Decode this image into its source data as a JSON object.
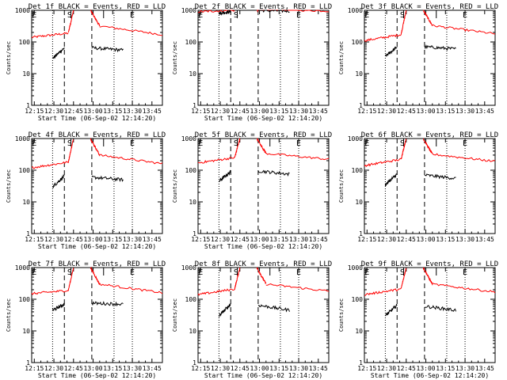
{
  "chart_data": [
    {
      "type": "line",
      "title": "Det 1f BLACK = Events, RED = LLD",
      "xlabel": "Start Time (06-Sep-02 12:14:20)",
      "ylabel": "Counts/sec",
      "ylim": [
        1,
        1000
      ],
      "yscale": "log",
      "xlim": [
        735,
        835
      ],
      "x_ticks": [
        "12:15",
        "12:30",
        "12:45",
        "13:00",
        "13:15",
        "13:30",
        "13:45"
      ],
      "y_ticks": [
        "1",
        "10",
        "100",
        "1000"
      ],
      "markers": [
        {
          "label": "E",
          "x": 737
        },
        {
          "label": "S",
          "x": 764
        },
        {
          "label": "E",
          "x": 812
        }
      ],
      "solid_lines": [
        765,
        790
      ],
      "dashed_lines": [
        760,
        781
      ],
      "dotted_lines": [
        751,
        798,
        812
      ],
      "series": [
        {
          "name": "RED",
          "color": "#ff0000",
          "segments": [
            {
              "x0": 735,
              "x1": 763,
              "y0": 140,
              "y1": 190
            },
            {
              "x0": 763,
              "x1": 767,
              "y0": 190,
              "y1": 1000
            },
            {
              "x0": 780,
              "x1": 787,
              "y0": 1000,
              "y1": 320
            },
            {
              "x0": 787,
              "x1": 835,
              "y0": 320,
              "y1": 170
            }
          ]
        },
        {
          "name": "BLACK",
          "color": "#000000",
          "segments": [
            {
              "x0": 751,
              "x1": 760,
              "y0": 30,
              "y1": 65
            },
            {
              "x0": 781,
              "x1": 805,
              "y0": 65,
              "y1": 55
            }
          ]
        }
      ]
    },
    {
      "type": "line",
      "title": "Det 2f BLACK = Events, RED = LLD",
      "xlabel": "Start Time (06-Sep-02 12:14:20)",
      "ylabel": "Counts/sec",
      "ylim": [
        1,
        1000
      ],
      "yscale": "log",
      "xlim": [
        735,
        835
      ],
      "x_ticks": [
        "12:15",
        "12:30",
        "12:45",
        "13:00",
        "13:15",
        "13:30",
        "13:45"
      ],
      "y_ticks": [
        "1",
        "10",
        "100",
        "1000"
      ],
      "markers": [
        {
          "label": "E",
          "x": 737
        },
        {
          "label": "S",
          "x": 764
        },
        {
          "label": "E",
          "x": 812
        }
      ],
      "solid_lines": [
        765,
        790
      ],
      "dashed_lines": [
        760,
        781
      ],
      "dotted_lines": [
        751,
        798,
        812
      ],
      "series": [
        {
          "name": "RED",
          "color": "#ff0000",
          "segments": [
            {
              "x0": 735,
              "x1": 763,
              "y0": 900,
              "y1": 1000
            },
            {
              "x0": 780,
              "x1": 787,
              "y0": 1000,
              "y1": 1100
            },
            {
              "x0": 787,
              "x1": 835,
              "y0": 1100,
              "y1": 950
            }
          ]
        },
        {
          "name": "BLACK",
          "color": "#000000",
          "segments": [
            {
              "x0": 751,
              "x1": 760,
              "y0": 800,
              "y1": 900
            },
            {
              "x0": 781,
              "x1": 805,
              "y0": 1000,
              "y1": 950
            }
          ]
        }
      ]
    },
    {
      "type": "line",
      "title": "Det 3f BLACK = Events, RED = LLD",
      "xlabel": "",
      "ylabel": "Counts/sec",
      "ylim": [
        1,
        1000
      ],
      "yscale": "log",
      "xlim": [
        735,
        835
      ],
      "x_ticks": [
        "12:15",
        "12:30",
        "12:45",
        "13:00",
        "13:15",
        "13:30",
        "13:45"
      ],
      "y_ticks": [
        "1",
        "10",
        "100",
        "1000"
      ],
      "markers": [
        {
          "label": "E",
          "x": 737
        },
        {
          "label": "S",
          "x": 764
        },
        {
          "label": "E",
          "x": 812
        }
      ],
      "solid_lines": [
        765,
        790
      ],
      "dashed_lines": [
        760,
        781
      ],
      "dotted_lines": [
        751,
        798,
        812
      ],
      "series": [
        {
          "name": "RED",
          "color": "#ff0000",
          "segments": [
            {
              "x0": 735,
              "x1": 763,
              "y0": 110,
              "y1": 170
            },
            {
              "x0": 763,
              "x1": 767,
              "y0": 170,
              "y1": 1000
            },
            {
              "x0": 780,
              "x1": 787,
              "y0": 1000,
              "y1": 330
            },
            {
              "x0": 787,
              "x1": 835,
              "y0": 330,
              "y1": 180
            }
          ]
        },
        {
          "name": "BLACK",
          "color": "#000000",
          "segments": [
            {
              "x0": 751,
              "x1": 760,
              "y0": 35,
              "y1": 70
            },
            {
              "x0": 781,
              "x1": 805,
              "y0": 70,
              "y1": 60
            }
          ]
        }
      ]
    },
    {
      "type": "line",
      "title": "Det 4f BLACK = Events, RED = LLD",
      "xlabel": "Start Time (06-Sep-02 12:14:20)",
      "ylabel": "Counts/sec",
      "ylim": [
        1,
        1000
      ],
      "yscale": "log",
      "xlim": [
        735,
        835
      ],
      "x_ticks": [
        "12:15",
        "12:30",
        "12:45",
        "13:00",
        "13:15",
        "13:30",
        "13:45"
      ],
      "y_ticks": [
        "1",
        "10",
        "100",
        "1000"
      ],
      "markers": [
        {
          "label": "E",
          "x": 737
        },
        {
          "label": "S",
          "x": 764
        },
        {
          "label": "E",
          "x": 812
        }
      ],
      "solid_lines": [
        765,
        790
      ],
      "dashed_lines": [
        760,
        781
      ],
      "dotted_lines": [
        751,
        798,
        812
      ],
      "series": [
        {
          "name": "RED",
          "color": "#ff0000",
          "segments": [
            {
              "x0": 735,
              "x1": 763,
              "y0": 120,
              "y1": 180
            },
            {
              "x0": 763,
              "x1": 767,
              "y0": 180,
              "y1": 1000
            },
            {
              "x0": 780,
              "x1": 787,
              "y0": 1000,
              "y1": 300
            },
            {
              "x0": 787,
              "x1": 835,
              "y0": 300,
              "y1": 160
            }
          ]
        },
        {
          "name": "BLACK",
          "color": "#000000",
          "segments": [
            {
              "x0": 751,
              "x1": 760,
              "y0": 30,
              "y1": 65
            },
            {
              "x0": 781,
              "x1": 805,
              "y0": 60,
              "y1": 50
            }
          ]
        }
      ]
    },
    {
      "type": "line",
      "title": "Det 5f BLACK = Events, RED = LLD",
      "xlabel": "Start Time (06-Sep-02 12:14:20)",
      "ylabel": "Counts/sec",
      "ylim": [
        1,
        1000
      ],
      "yscale": "log",
      "xlim": [
        735,
        835
      ],
      "x_ticks": [
        "12:15",
        "12:30",
        "12:45",
        "13:00",
        "13:15",
        "13:30",
        "13:45"
      ],
      "y_ticks": [
        "1",
        "10",
        "100",
        "1000"
      ],
      "markers": [
        {
          "label": "E",
          "x": 737
        },
        {
          "label": "S",
          "x": 764
        },
        {
          "label": "E",
          "x": 812
        }
      ],
      "solid_lines": [
        765,
        790
      ],
      "dashed_lines": [
        760,
        781
      ],
      "dotted_lines": [
        751,
        798,
        812
      ],
      "series": [
        {
          "name": "RED",
          "color": "#ff0000",
          "segments": [
            {
              "x0": 735,
              "x1": 763,
              "y0": 170,
              "y1": 250
            },
            {
              "x0": 763,
              "x1": 767,
              "y0": 250,
              "y1": 1000
            },
            {
              "x0": 780,
              "x1": 787,
              "y0": 1000,
              "y1": 340
            },
            {
              "x0": 787,
              "x1": 835,
              "y0": 340,
              "y1": 220
            }
          ]
        },
        {
          "name": "BLACK",
          "color": "#000000",
          "segments": [
            {
              "x0": 751,
              "x1": 760,
              "y0": 45,
              "y1": 90
            },
            {
              "x0": 781,
              "x1": 805,
              "y0": 95,
              "y1": 75
            }
          ]
        }
      ]
    },
    {
      "type": "line",
      "title": "Det 6f BLACK = Events, RED = LLD",
      "xlabel": "",
      "ylabel": "Counts/sec",
      "ylim": [
        1,
        1000
      ],
      "yscale": "log",
      "xlim": [
        735,
        835
      ],
      "x_ticks": [
        "12:15",
        "12:30",
        "12:45",
        "13:00",
        "13:15",
        "13:30",
        "13:45"
      ],
      "y_ticks": [
        "1",
        "10",
        "100",
        "1000"
      ],
      "markers": [
        {
          "label": "E",
          "x": 737
        },
        {
          "label": "S",
          "x": 764
        },
        {
          "label": "E",
          "x": 812
        }
      ],
      "solid_lines": [
        765,
        790
      ],
      "dashed_lines": [
        760,
        781
      ],
      "dotted_lines": [
        751,
        798,
        812
      ],
      "series": [
        {
          "name": "RED",
          "color": "#ff0000",
          "segments": [
            {
              "x0": 735,
              "x1": 763,
              "y0": 140,
              "y1": 220
            },
            {
              "x0": 763,
              "x1": 767,
              "y0": 220,
              "y1": 1000
            },
            {
              "x0": 780,
              "x1": 787,
              "y0": 1000,
              "y1": 320
            },
            {
              "x0": 787,
              "x1": 835,
              "y0": 320,
              "y1": 190
            }
          ]
        },
        {
          "name": "BLACK",
          "color": "#000000",
          "segments": [
            {
              "x0": 751,
              "x1": 760,
              "y0": 35,
              "y1": 75
            },
            {
              "x0": 781,
              "x1": 805,
              "y0": 70,
              "y1": 55
            }
          ]
        }
      ]
    },
    {
      "type": "line",
      "title": "Det 7f BLACK = Events, RED = LLD",
      "xlabel": "Start Time (06-Sep-02 12:14:20)",
      "ylabel": "Counts/sec",
      "ylim": [
        1,
        1000
      ],
      "yscale": "log",
      "xlim": [
        735,
        835
      ],
      "x_ticks": [
        "12:15",
        "12:30",
        "12:45",
        "13:00",
        "13:15",
        "13:30",
        "13:45"
      ],
      "y_ticks": [
        "1",
        "10",
        "100",
        "1000"
      ],
      "markers": [
        {
          "label": "E",
          "x": 737
        },
        {
          "label": "S",
          "x": 764
        },
        {
          "label": "E",
          "x": 812
        }
      ],
      "solid_lines": [
        765,
        790
      ],
      "dashed_lines": [
        760,
        781
      ],
      "dotted_lines": [
        751,
        798,
        812
      ],
      "series": [
        {
          "name": "RED",
          "color": "#ff0000",
          "segments": [
            {
              "x0": 735,
              "x1": 763,
              "y0": 150,
              "y1": 190
            },
            {
              "x0": 763,
              "x1": 767,
              "y0": 190,
              "y1": 1000
            },
            {
              "x0": 780,
              "x1": 787,
              "y0": 1000,
              "y1": 300
            },
            {
              "x0": 787,
              "x1": 835,
              "y0": 300,
              "y1": 160
            }
          ]
        },
        {
          "name": "BLACK",
          "color": "#000000",
          "segments": [
            {
              "x0": 751,
              "x1": 760,
              "y0": 45,
              "y1": 70
            },
            {
              "x0": 781,
              "x1": 805,
              "y0": 75,
              "y1": 70
            }
          ]
        }
      ]
    },
    {
      "type": "line",
      "title": "Det 8f BLACK = Events, RED = LLD",
      "xlabel": "Start Time (06-Sep-02 12:14:20)",
      "ylabel": "Counts/sec",
      "ylim": [
        1,
        1000
      ],
      "yscale": "log",
      "xlim": [
        735,
        835
      ],
      "x_ticks": [
        "12:15",
        "12:30",
        "12:45",
        "13:00",
        "13:15",
        "13:30",
        "13:45"
      ],
      "y_ticks": [
        "1",
        "10",
        "100",
        "1000"
      ],
      "markers": [
        {
          "label": "E",
          "x": 737
        },
        {
          "label": "S",
          "x": 764
        },
        {
          "label": "E",
          "x": 812
        }
      ],
      "solid_lines": [
        765,
        790
      ],
      "dashed_lines": [
        760,
        781
      ],
      "dotted_lines": [
        751,
        798,
        812
      ],
      "series": [
        {
          "name": "RED",
          "color": "#ff0000",
          "segments": [
            {
              "x0": 735,
              "x1": 763,
              "y0": 140,
              "y1": 210
            },
            {
              "x0": 763,
              "x1": 767,
              "y0": 210,
              "y1": 1000
            },
            {
              "x0": 780,
              "x1": 787,
              "y0": 1000,
              "y1": 300
            },
            {
              "x0": 787,
              "x1": 835,
              "y0": 300,
              "y1": 180
            }
          ]
        },
        {
          "name": "BLACK",
          "color": "#000000",
          "segments": [
            {
              "x0": 751,
              "x1": 760,
              "y0": 30,
              "y1": 70
            },
            {
              "x0": 781,
              "x1": 805,
              "y0": 65,
              "y1": 45
            }
          ]
        }
      ]
    },
    {
      "type": "line",
      "title": "Det 9f BLACK = Events, RED = LLD",
      "xlabel": "Start Time (06-Sep-02 12:14:20)",
      "ylabel": "Counts/sec",
      "ylim": [
        1,
        1000
      ],
      "yscale": "log",
      "xlim": [
        735,
        835
      ],
      "x_ticks": [
        "12:15",
        "12:30",
        "12:45",
        "13:00",
        "13:15",
        "13:30",
        "13:45"
      ],
      "y_ticks": [
        "1",
        "10",
        "100",
        "1000"
      ],
      "markers": [
        {
          "label": "E",
          "x": 737
        },
        {
          "label": "S",
          "x": 764
        },
        {
          "label": "E",
          "x": 812
        }
      ],
      "solid_lines": [
        765,
        790
      ],
      "dashed_lines": [
        760,
        781
      ],
      "dotted_lines": [
        751,
        798,
        812
      ],
      "series": [
        {
          "name": "RED",
          "color": "#ff0000",
          "segments": [
            {
              "x0": 735,
              "x1": 763,
              "y0": 140,
              "y1": 210
            },
            {
              "x0": 763,
              "x1": 767,
              "y0": 210,
              "y1": 1000
            },
            {
              "x0": 780,
              "x1": 787,
              "y0": 1000,
              "y1": 300
            },
            {
              "x0": 787,
              "x1": 835,
              "y0": 300,
              "y1": 170
            }
          ]
        },
        {
          "name": "BLACK",
          "color": "#000000",
          "segments": [
            {
              "x0": 751,
              "x1": 760,
              "y0": 30,
              "y1": 65
            },
            {
              "x0": 781,
              "x1": 805,
              "y0": 60,
              "y1": 45
            }
          ]
        }
      ]
    }
  ]
}
